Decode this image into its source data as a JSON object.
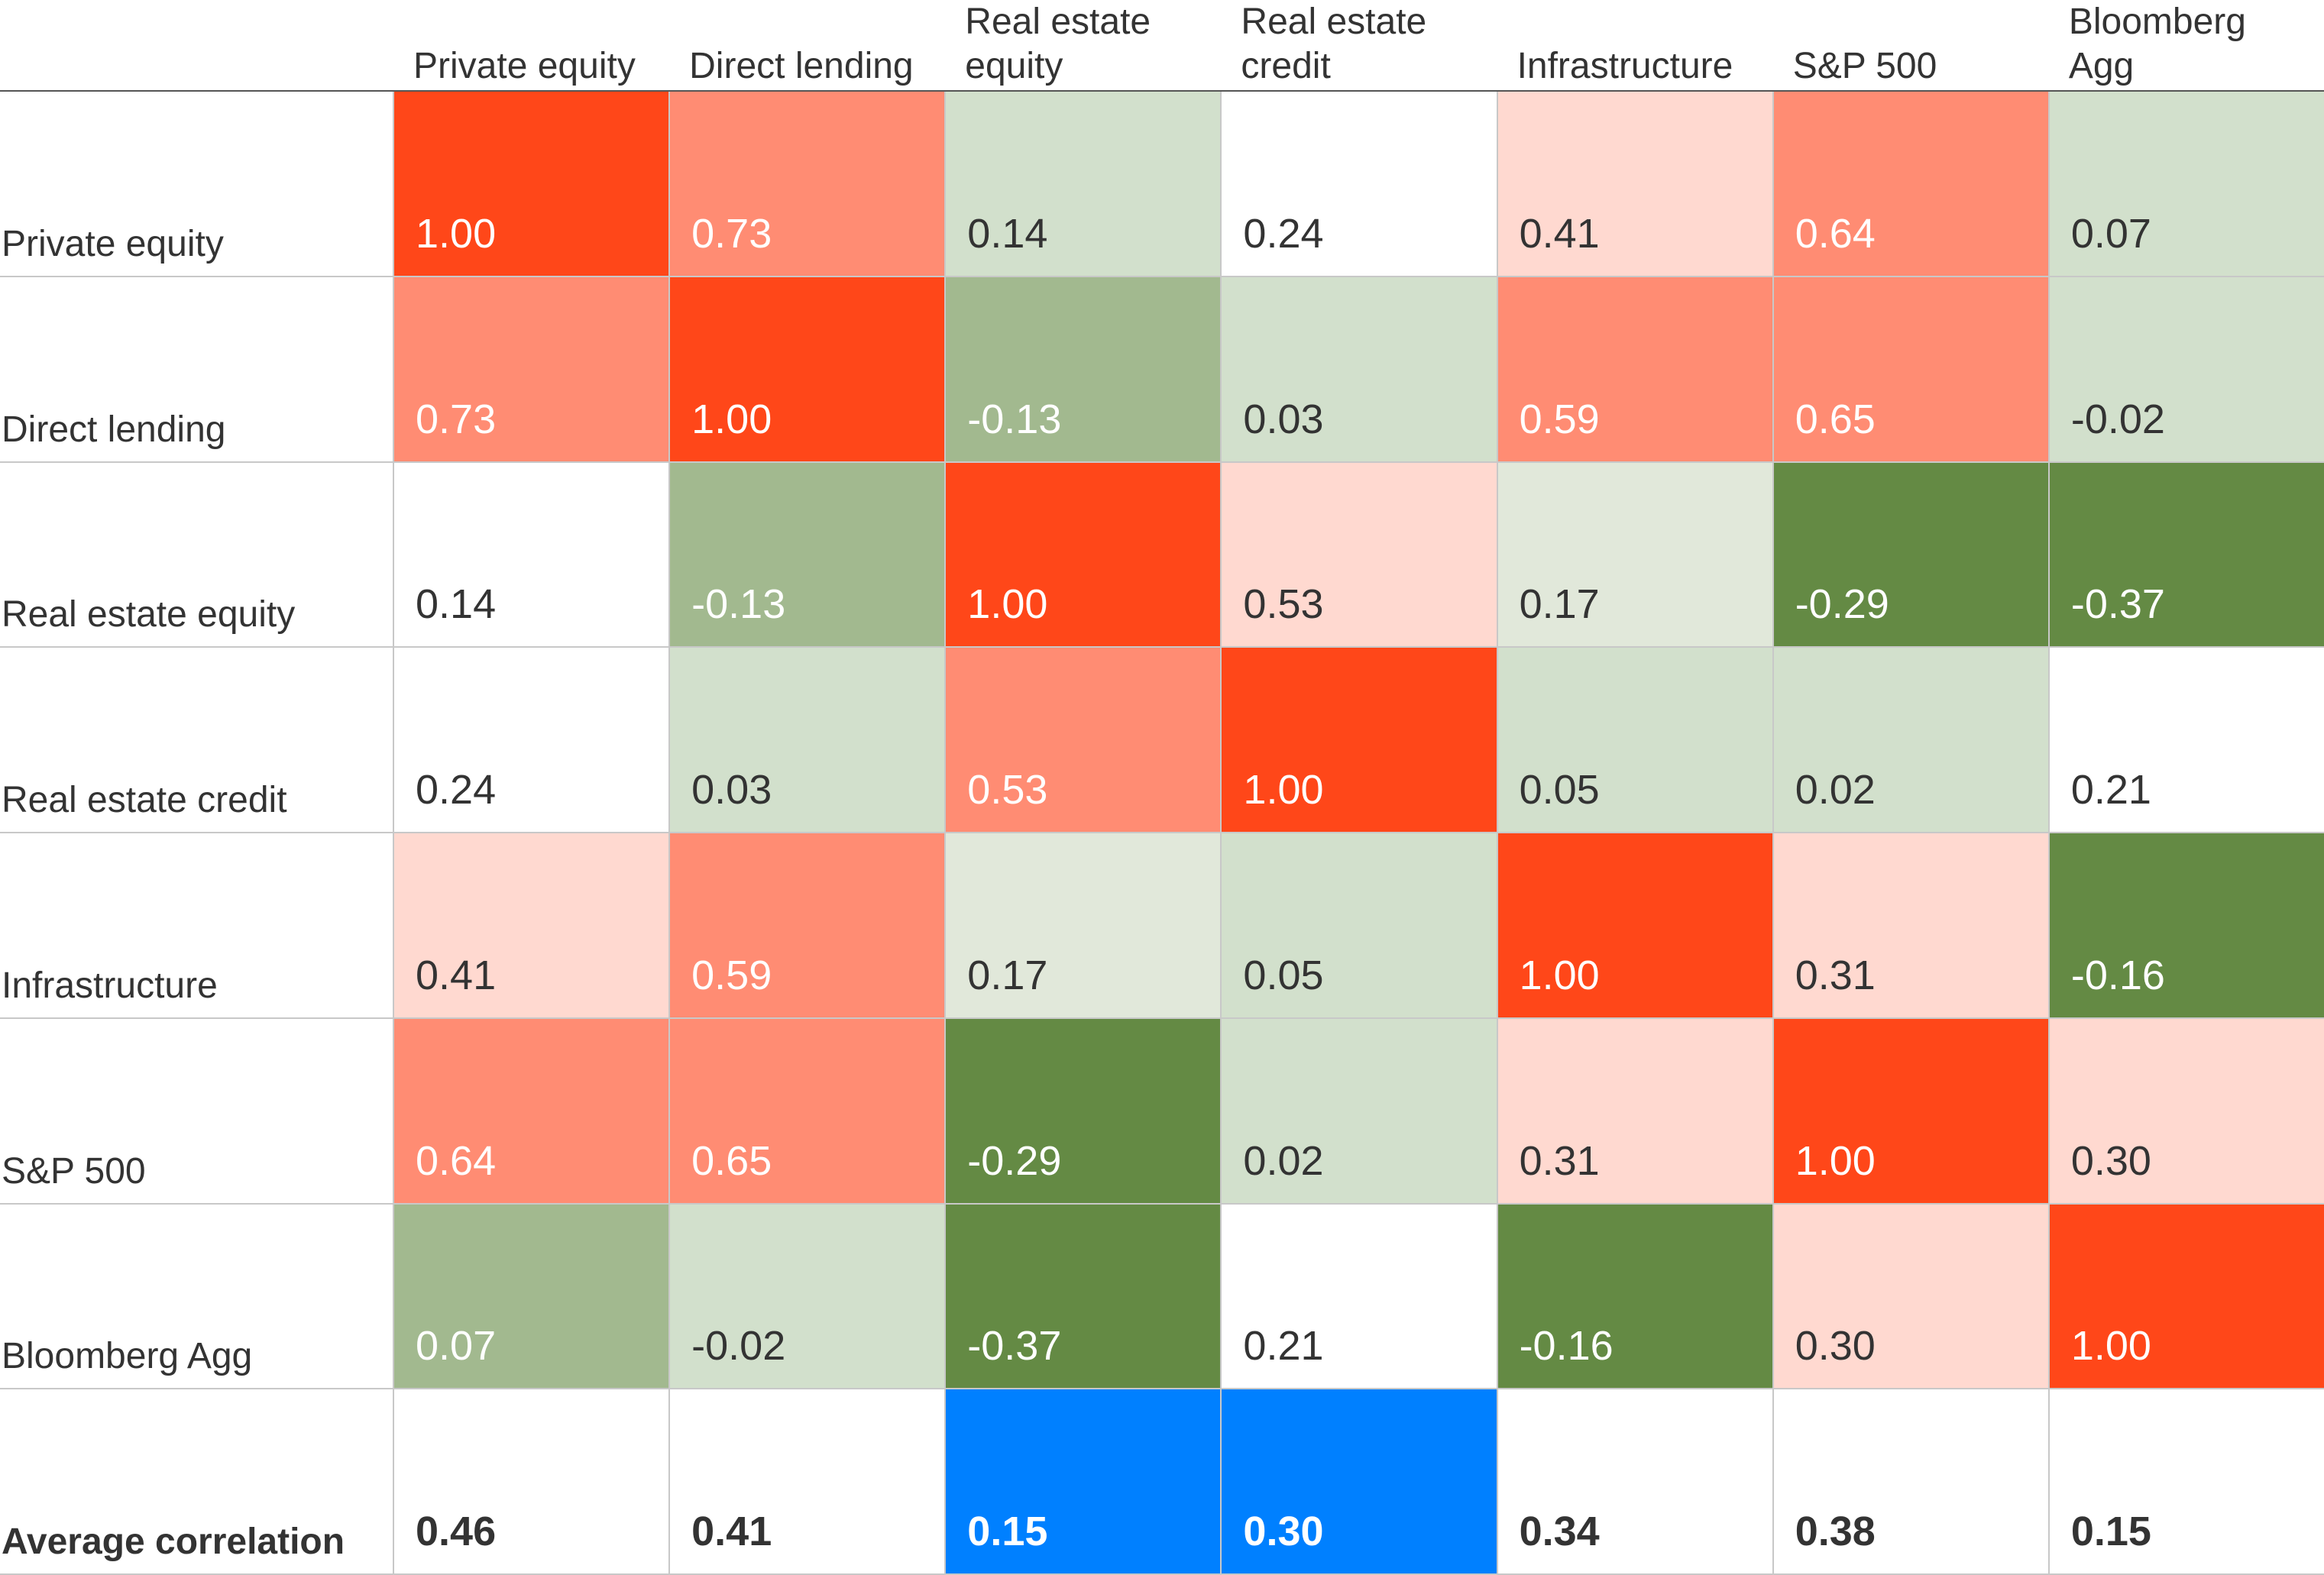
{
  "chart_data": {
    "type": "heatmap",
    "columns": [
      "Private equity",
      "Direct lending",
      "Real estate equity",
      "Real estate credit",
      "Infrastructure",
      "S&P 500",
      "Bloomberg Agg"
    ],
    "rows": [
      "Private equity",
      "Direct lending",
      "Real estate equity",
      "Real estate credit",
      "Infrastructure",
      "S&P 500",
      "Bloomberg Agg"
    ],
    "values": [
      [
        1.0,
        0.73,
        0.14,
        0.24,
        0.41,
        0.64,
        0.07
      ],
      [
        0.73,
        1.0,
        -0.13,
        0.03,
        0.59,
        0.65,
        -0.02
      ],
      [
        0.14,
        -0.13,
        1.0,
        0.53,
        0.17,
        -0.29,
        -0.37
      ],
      [
        0.24,
        0.03,
        0.53,
        1.0,
        0.05,
        0.02,
        0.21
      ],
      [
        0.41,
        0.59,
        0.17,
        0.05,
        1.0,
        0.31,
        -0.16
      ],
      [
        0.64,
        0.65,
        -0.29,
        0.02,
        0.31,
        1.0,
        0.3
      ],
      [
        0.07,
        -0.02,
        -0.37,
        0.21,
        -0.16,
        0.3,
        1.0
      ]
    ],
    "value_labels": [
      [
        "1.00",
        "0.73",
        "0.14",
        "0.24",
        "0.41",
        "0.64",
        "0.07"
      ],
      [
        "0.73",
        "1.00",
        "-0.13",
        "0.03",
        "0.59",
        "0.65",
        "-0.02"
      ],
      [
        "0.14",
        "-0.13",
        "1.00",
        "0.53",
        "0.17",
        "-0.29",
        "-0.37"
      ],
      [
        "0.24",
        "0.03",
        "0.53",
        "1.00",
        "0.05",
        "0.02",
        "0.21"
      ],
      [
        "0.41",
        "0.59",
        "0.17",
        "0.05",
        "1.00",
        "0.31",
        "-0.16"
      ],
      [
        "0.64",
        "0.65",
        "-0.29",
        "0.02",
        "0.31",
        "1.00",
        "0.30"
      ],
      [
        "0.07",
        "-0.02",
        "-0.37",
        "0.21",
        "-0.16",
        "0.30",
        "1.00"
      ]
    ],
    "colors": [
      [
        "#ff4719",
        "#ff8c73",
        "#d2e0cc",
        "#ffffff",
        "#ffd9d0",
        "#ff8c73",
        "#d2e0cc"
      ],
      [
        "#ff8c73",
        "#ff4719",
        "#a2b98f",
        "#d2e0cc",
        "#ff8c73",
        "#ff8c73",
        "#d2e0cc"
      ],
      [
        "#ffffff",
        "#a2b98f",
        "#ff4719",
        "#ffd9d0",
        "#e1e8da",
        "#648a44",
        "#648a44"
      ],
      [
        "#ffffff",
        "#d2e0cc",
        "#ff8c73",
        "#ff4719",
        "#d2e0cc",
        "#d2e0cc",
        "#ffffff"
      ],
      [
        "#ffd9d0",
        "#ff8c73",
        "#e1e8da",
        "#d2e0cc",
        "#ff4719",
        "#ffd9d0",
        "#648a44"
      ],
      [
        "#ff8c73",
        "#ff8c73",
        "#648a44",
        "#d2e0cc",
        "#ffd9d0",
        "#ff4719",
        "#ffd9d0"
      ],
      [
        "#a2b98f",
        "#d2e0cc",
        "#648a44",
        "#ffffff",
        "#648a44",
        "#ffd9d0",
        "#ff4719"
      ]
    ],
    "summary": {
      "label": "Average correlation",
      "values": [
        0.46,
        0.41,
        0.15,
        0.3,
        0.34,
        0.38,
        0.15
      ],
      "value_labels": [
        "0.46",
        "0.41",
        "0.15",
        "0.30",
        "0.34",
        "0.38",
        "0.15"
      ],
      "colors": [
        "#ffffff",
        "#ffffff",
        "#0080ff",
        "#0080ff",
        "#ffffff",
        "#ffffff",
        "#ffffff"
      ]
    }
  }
}
